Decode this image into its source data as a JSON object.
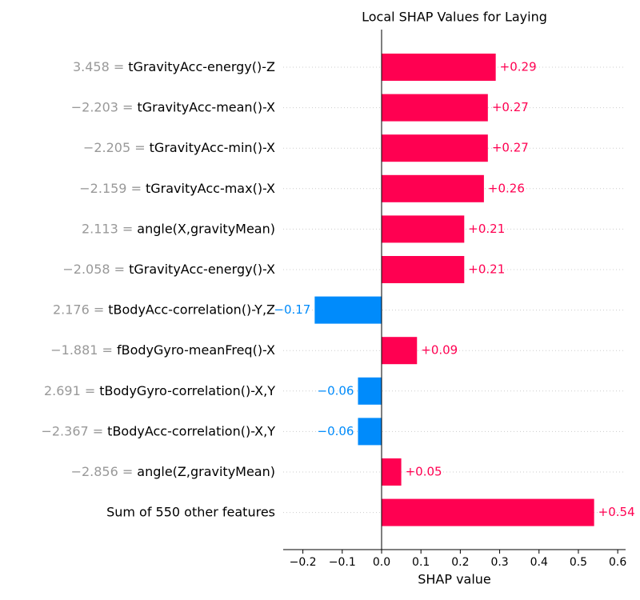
{
  "chart_data": {
    "type": "bar",
    "orientation": "horizontal",
    "title": "Local SHAP Values for Laying",
    "xlabel": "SHAP value",
    "categories": [
      "tGravityAcc-energy()-Z",
      "tGravityAcc-mean()-X",
      "tGravityAcc-min()-X",
      "tGravityAcc-max()-X",
      "angle(X,gravityMean)",
      "tGravityAcc-energy()-X",
      "tBodyAcc-correlation()-Y,Z",
      "fBodyGyro-meanFreq()-X",
      "tBodyGyro-correlation()-X,Y",
      "tBodyAcc-correlation()-X,Y",
      "angle(Z,gravityMean)",
      "Sum of 550 other features"
    ],
    "feature_values": [
      "3.458 =",
      "−2.203 =",
      "−2.205 =",
      "−2.159 =",
      "2.113 =",
      "−2.058 =",
      "2.176 =",
      "−1.881 =",
      "2.691 =",
      "−2.367 =",
      "−2.856 =",
      null
    ],
    "values": [
      0.29,
      0.27,
      0.27,
      0.26,
      0.21,
      0.21,
      -0.17,
      0.09,
      -0.06,
      -0.06,
      0.05,
      0.54
    ],
    "value_labels": [
      "+0.29",
      "+0.27",
      "+0.27",
      "+0.26",
      "+0.21",
      "+0.21",
      "−0.17",
      "+0.09",
      "−0.06",
      "−0.06",
      "+0.05",
      "+0.54"
    ],
    "positive_color": "#ff0051",
    "negative_color": "#008bfb",
    "xlim": [
      -0.25,
      0.62
    ],
    "xticks": [
      {
        "value": -0.2,
        "label": "−0.2"
      },
      {
        "value": -0.1,
        "label": "−0.1"
      },
      {
        "value": 0,
        "label": "0.0"
      },
      0.1,
      0.2,
      0.3,
      0.4,
      0.5,
      0.6
    ]
  }
}
